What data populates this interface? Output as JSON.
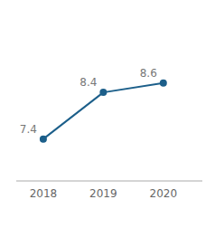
{
  "chart_data": {
    "type": "line",
    "x": [
      2018,
      2019,
      2020
    ],
    "values": [
      7.4,
      8.4,
      8.6
    ],
    "color": "#1c5f8a",
    "marker": "circle",
    "xlim": [
      2017.55,
      2020.65
    ],
    "xticks": [
      2018,
      2019,
      2020
    ],
    "ylim": [
      6.5,
      9.8
    ],
    "data_labels": true,
    "tick_labels": "x",
    "grid": false
  }
}
